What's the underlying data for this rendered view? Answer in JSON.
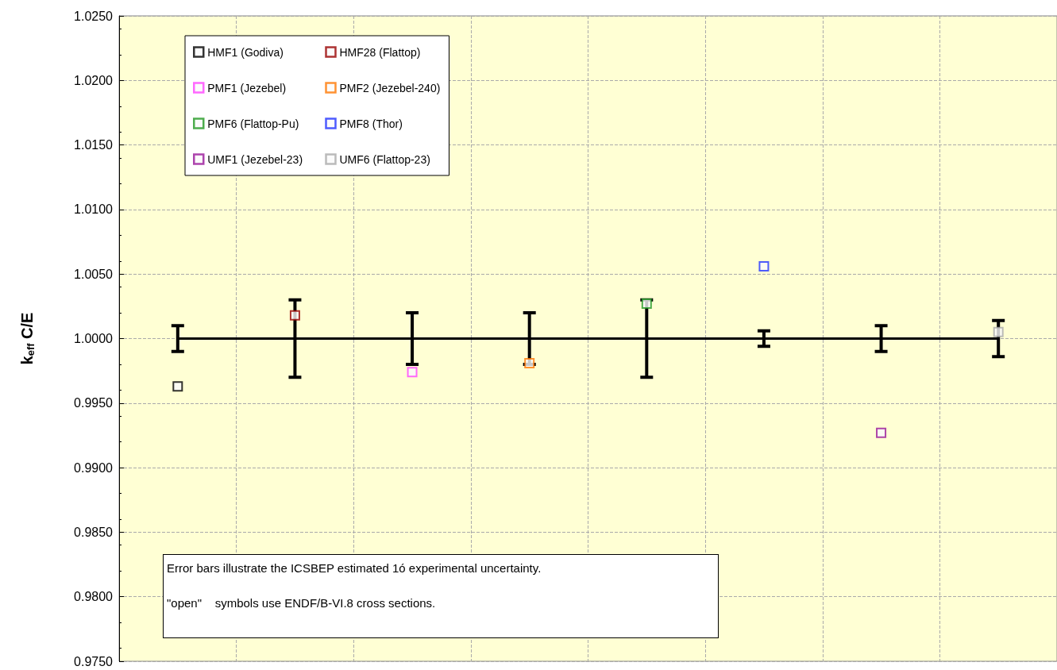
{
  "chart_data": {
    "type": "scatter",
    "ylabel": "k$_{eff}$ C/E",
    "categories": [
      null,
      null,
      null,
      null,
      null,
      null,
      null,
      null
    ],
    "ylim": [
      0.975,
      1.025
    ],
    "yticks": [
      {
        "value": 0.975,
        "label": "0.9750"
      },
      {
        "value": 0.98,
        "label": "0.9800"
      },
      {
        "value": 0.985,
        "label": "0.9850"
      },
      {
        "value": 0.99,
        "label": "0.9900"
      },
      {
        "value": 0.995,
        "label": "0.9950"
      },
      {
        "value": 1.0,
        "label": "1.0000"
      },
      {
        "value": 1.005,
        "label": "1.0050"
      },
      {
        "value": 1.01,
        "label": "1.0100"
      },
      {
        "value": 1.015,
        "label": "1.0150"
      },
      {
        "value": 1.02,
        "label": "1.0200"
      },
      {
        "value": 1.025,
        "label": "1.0250"
      }
    ],
    "grid": true,
    "legend": "top left",
    "marker": "square",
    "annotations": [
      "Error bars illustrate the ICSBEP estimated 1ó experimental uncertainty.",
      "\"open\"    symbols use ENDF/B-VI.8 cross sections."
    ],
    "series": [
      {
        "name": "HMF1 (Godiva)",
        "color": "#000000",
        "values": [
          0.9963,
          null,
          null,
          null,
          null,
          null,
          null,
          null
        ]
      },
      {
        "name": "HMF28 (Flattop)",
        "color": "#990000",
        "values": [
          null,
          1.0018,
          null,
          null,
          null,
          null,
          null,
          null
        ]
      },
      {
        "name": "PMF1 (Jezebel)",
        "color": "#ff44ff",
        "values": [
          null,
          null,
          0.9974,
          null,
          null,
          null,
          null,
          null
        ]
      },
      {
        "name": "PMF2 (Jezebel-240)",
        "color": "#ff7700",
        "values": [
          null,
          null,
          null,
          0.9981,
          null,
          null,
          null,
          null
        ]
      },
      {
        "name": "PMF6 (Flattop-Pu)",
        "color": "#229922",
        "values": [
          null,
          null,
          null,
          null,
          1.0027,
          null,
          null,
          null
        ]
      },
      {
        "name": "PMF8 (Thor)",
        "color": "#2233ff",
        "values": [
          null,
          null,
          null,
          null,
          null,
          1.0056,
          null,
          null
        ]
      },
      {
        "name": "UMF1 (Jezebel-23)",
        "color": "#991599",
        "values": [
          null,
          null,
          null,
          null,
          null,
          null,
          0.9927,
          null
        ]
      },
      {
        "name": "UMF6 (Flattop-23)",
        "color": "#aaaaaa",
        "values": [
          null,
          null,
          null,
          null,
          null,
          null,
          null,
          1.0005
        ]
      },
      {
        "type": "line",
        "color": "#000000",
        "marker": "none",
        "values": [
          1.0,
          1.0,
          1.0,
          1.0,
          1.0,
          1.0,
          1.0,
          1.0
        ],
        "errors": [
          0.001,
          0.003,
          0.002,
          0.002,
          0.003,
          0.0006,
          0.001,
          0.0014
        ]
      }
    ]
  }
}
